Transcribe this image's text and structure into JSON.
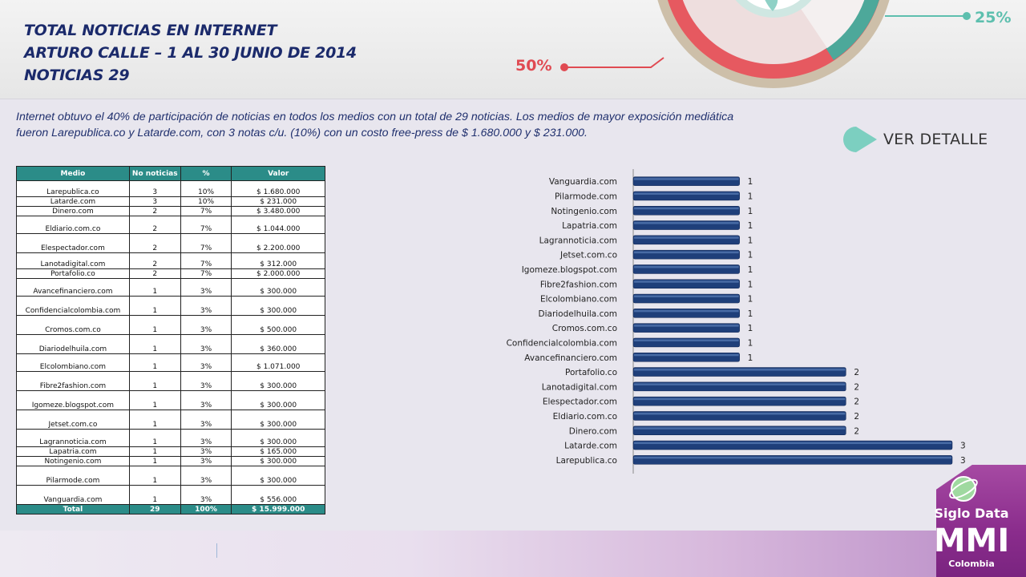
{
  "header": {
    "title_lines": [
      "TOTAL NOTICIAS EN INTERNET",
      "ARTURO CALLE – 1 AL 30 JUNIO DE 2014",
      "NOTICIAS 29"
    ],
    "badge_50": "50%",
    "badge_25": "25%"
  },
  "intro_text": "Internet obtuvo el 40% de participación de noticias en todos los medios con un total de 29 noticias. Los medios de mayor exposición mediática fueron Larepublica.co y Latarde.com, con 3 notas c/u. (10%) con un costo free-press de $ 1.680.000 y $ 231.000.",
  "ver_detalle": "VER DETALLE",
  "table": {
    "headers": [
      "Medio",
      "No noticias",
      "%",
      "Valor"
    ],
    "rows": [
      [
        "Larepublica.co",
        "3",
        "10%",
        "$ 1.680.000"
      ],
      [
        "Latarde.com",
        "3",
        "10%",
        "$ 231.000"
      ],
      [
        "Dinero.com",
        "2",
        "7%",
        "$ 3.480.000"
      ],
      [
        "Eldiario.com.co",
        "2",
        "7%",
        "$ 1.044.000"
      ],
      [
        "Elespectador.com",
        "2",
        "7%",
        "$ 2.200.000"
      ],
      [
        "Lanotadigital.com",
        "2",
        "7%",
        "$ 312.000"
      ],
      [
        "Portafolio.co",
        "2",
        "7%",
        "$ 2.000.000"
      ],
      [
        "Avancefinanciero.com",
        "1",
        "3%",
        "$ 300.000"
      ],
      [
        "Confidencialcolombia.com",
        "1",
        "3%",
        "$ 300.000"
      ],
      [
        "Cromos.com.co",
        "1",
        "3%",
        "$ 500.000"
      ],
      [
        "Diariodelhuila.com",
        "1",
        "3%",
        "$ 360.000"
      ],
      [
        "Elcolombiano.com",
        "1",
        "3%",
        "$ 1.071.000"
      ],
      [
        "Fibre2fashion.com",
        "1",
        "3%",
        "$ 300.000"
      ],
      [
        "Igomeze.blogspot.com",
        "1",
        "3%",
        "$ 300.000"
      ],
      [
        "Jetset.com.co",
        "1",
        "3%",
        "$ 300.000"
      ],
      [
        "Lagrannoticia.com",
        "1",
        "3%",
        "$ 300.000"
      ],
      [
        "Lapatria.com",
        "1",
        "3%",
        "$ 165.000"
      ],
      [
        "Notingenio.com",
        "1",
        "3%",
        "$ 300.000"
      ],
      [
        "Pilarmode.com",
        "1",
        "3%",
        "$ 300.000"
      ],
      [
        "Vanguardia.com",
        "1",
        "3%",
        "$ 556.000"
      ]
    ],
    "total": [
      "Total",
      "29",
      "100%",
      "$ 15.999.000"
    ]
  },
  "chart_data": {
    "type": "bar",
    "orientation": "horizontal",
    "categories": [
      "Vanguardia.com",
      "Pilarmode.com",
      "Notingenio.com",
      "Lapatria.com",
      "Lagrannoticia.com",
      "Jetset.com.co",
      "Igomeze.blogspot.com",
      "Fibre2fashion.com",
      "Elcolombiano.com",
      "Diariodelhuila.com",
      "Cromos.com.co",
      "Confidencialcolombia.com",
      "Avancefinanciero.com",
      "Portafolio.co",
      "Lanotadigital.com",
      "Elespectador.com",
      "Eldiario.com.co",
      "Dinero.com",
      "Latarde.com",
      "Larepublica.co"
    ],
    "values": [
      1,
      1,
      1,
      1,
      1,
      1,
      1,
      1,
      1,
      1,
      1,
      1,
      1,
      2,
      2,
      2,
      2,
      2,
      3,
      3
    ],
    "data_labels": true,
    "xlim": [
      0,
      3
    ],
    "grid": false,
    "bar_color": "#1f3f7a"
  },
  "logo": {
    "line1": "Siglo Data",
    "line2": "MMI",
    "line3": "Colombia"
  },
  "colors": {
    "title": "#1b2a6b",
    "accent_red": "#e04a52",
    "accent_teal": "#5dbfae",
    "table_header": "#2b8c88",
    "bar": "#1f3f7a"
  }
}
